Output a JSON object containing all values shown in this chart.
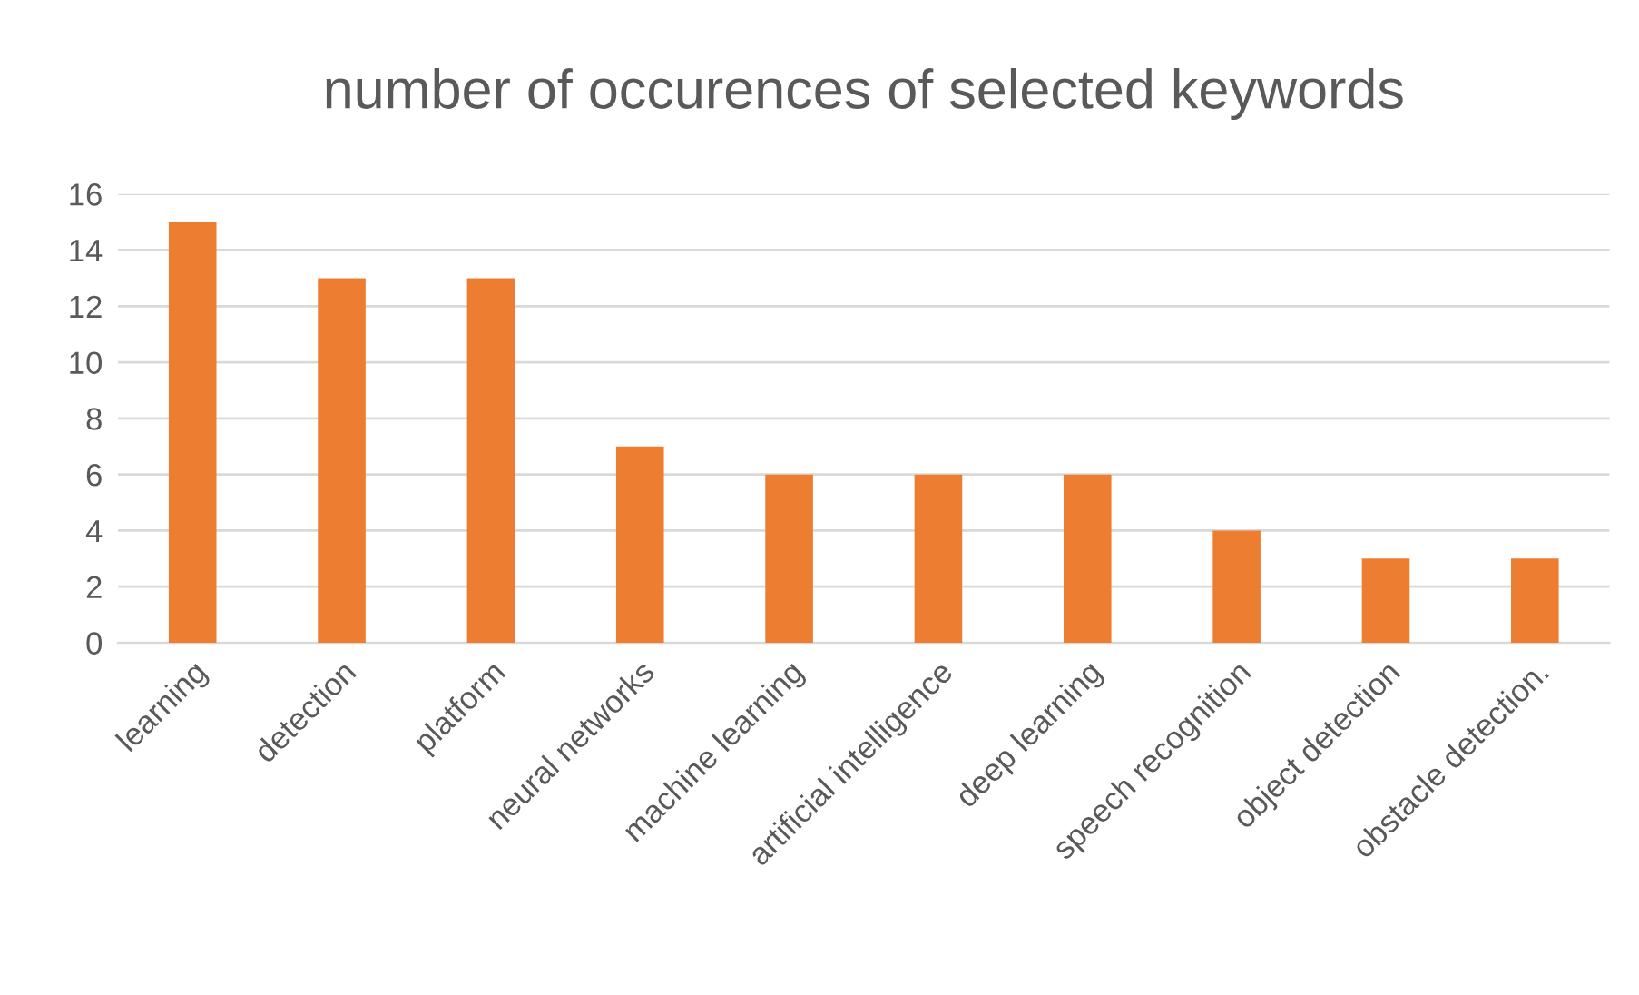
{
  "chart_data": {
    "type": "bar",
    "title": "number of occurences of selected keywords",
    "categories": [
      "learning",
      "detection",
      "platform",
      "neural networks",
      "machine learning",
      "artificial intelligence",
      "deep learning",
      "speech recognition",
      "object detection",
      "obstacle detection."
    ],
    "values": [
      15,
      13,
      13,
      7,
      6,
      6,
      6,
      4,
      3,
      3
    ],
    "color": "#ed7d31",
    "ylim": [
      0,
      16
    ],
    "yticks": [
      0,
      2,
      4,
      6,
      8,
      10,
      12,
      14,
      16
    ],
    "grid": "y"
  }
}
